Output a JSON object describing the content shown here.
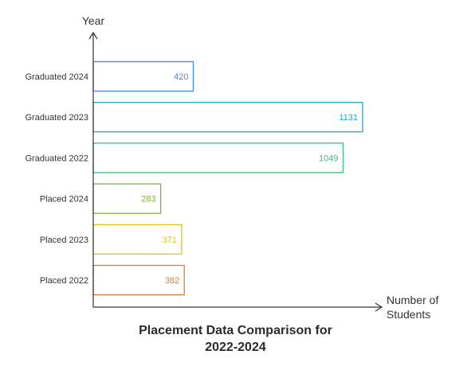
{
  "chart_data": {
    "type": "bar",
    "orientation": "horizontal",
    "title_lines": [
      "Placement Data Comparison for",
      "2022-2024"
    ],
    "ylabel": "Year",
    "xlabel_lines": [
      "Number of",
      "Students"
    ],
    "xlim": [
      0,
      1131
    ],
    "grid": false,
    "legend": "none",
    "categories": [
      "Graduated 2024",
      "Graduated 2023",
      "Graduated 2022",
      "Placed 2024",
      "Placed 2023",
      "Placed 2022"
    ],
    "values": [
      420,
      1131,
      1049,
      283,
      371,
      382
    ],
    "colors": [
      "#4a86e8",
      "#1fa8c9",
      "#3dbb7e",
      "#7cb342",
      "#e6c21a",
      "#e07d2c"
    ]
  }
}
